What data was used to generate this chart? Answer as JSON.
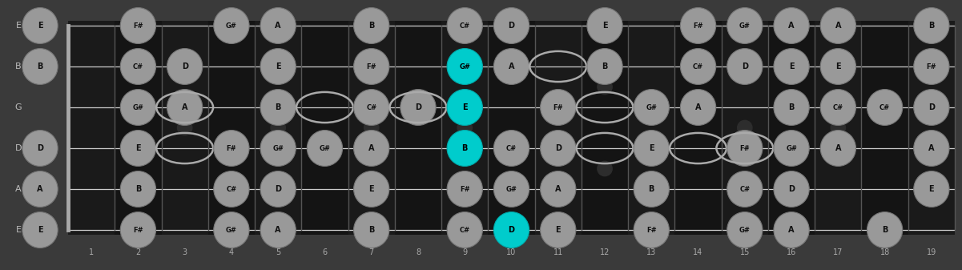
{
  "fig_width": 12.01,
  "fig_height": 3.37,
  "bg_color": "#3a3a3a",
  "fretboard_bg": "#1c1c1c",
  "fret_alt1": "#1e1e1e",
  "fret_alt2": "#161616",
  "string_color": "#cccccc",
  "fret_color": "#555555",
  "nut_color": "#888888",
  "note_fill": "#999999",
  "note_edge": "#777777",
  "note_text": "#111111",
  "highlight_fill": "#00cccc",
  "highlight_edge": "#00aaaa",
  "highlight_text": "#000000",
  "open_edge": "#aaaaaa",
  "label_color": "#bbbbbb",
  "fret_num_color": "#aaaaaa",
  "num_frets": 19,
  "num_strings": 6,
  "string_labels": [
    "E",
    "B",
    "G",
    "D",
    "A",
    "E"
  ],
  "position_dots": [
    3,
    5,
    7,
    9,
    12,
    15,
    17
  ],
  "double_dots": [
    12
  ],
  "notes_data": [
    [
      0,
      0,
      "E",
      false,
      false
    ],
    [
      0,
      1,
      "B",
      false,
      false
    ],
    [
      0,
      3,
      "D",
      false,
      false
    ],
    [
      0,
      4,
      "A",
      false,
      false
    ],
    [
      0,
      5,
      "E",
      false,
      false
    ],
    [
      2,
      0,
      "F#",
      false,
      false
    ],
    [
      2,
      1,
      "C#",
      false,
      false
    ],
    [
      2,
      2,
      "G#",
      false,
      false
    ],
    [
      2,
      3,
      "E",
      false,
      false
    ],
    [
      2,
      4,
      "B",
      false,
      false
    ],
    [
      2,
      5,
      "F#",
      false,
      false
    ],
    [
      3,
      1,
      "D",
      false,
      false
    ],
    [
      3,
      2,
      "A",
      false,
      false
    ],
    [
      3,
      2,
      "",
      false,
      true
    ],
    [
      3,
      3,
      "",
      false,
      true
    ],
    [
      4,
      0,
      "G#",
      false,
      false
    ],
    [
      4,
      3,
      "F#",
      false,
      false
    ],
    [
      4,
      4,
      "C#",
      false,
      false
    ],
    [
      4,
      5,
      "G#",
      false,
      false
    ],
    [
      5,
      0,
      "A",
      false,
      false
    ],
    [
      5,
      1,
      "E",
      false,
      false
    ],
    [
      5,
      2,
      "B",
      false,
      false
    ],
    [
      5,
      3,
      "G#",
      false,
      false
    ],
    [
      5,
      4,
      "D",
      false,
      false
    ],
    [
      5,
      5,
      "A",
      false,
      false
    ],
    [
      6,
      2,
      "",
      false,
      true
    ],
    [
      6,
      3,
      "G#",
      false,
      false
    ],
    [
      7,
      0,
      "B",
      false,
      false
    ],
    [
      7,
      1,
      "F#",
      false,
      false
    ],
    [
      7,
      2,
      "C#",
      false,
      false
    ],
    [
      7,
      3,
      "A",
      false,
      false
    ],
    [
      7,
      4,
      "E",
      false,
      false
    ],
    [
      7,
      5,
      "B",
      false,
      false
    ],
    [
      8,
      2,
      "D",
      false,
      false
    ],
    [
      8,
      2,
      "",
      false,
      true
    ],
    [
      9,
      0,
      "C#",
      false,
      false
    ],
    [
      9,
      1,
      "G#",
      true,
      false
    ],
    [
      9,
      2,
      "E",
      true,
      false
    ],
    [
      9,
      3,
      "B",
      true,
      false
    ],
    [
      9,
      4,
      "F#",
      false,
      false
    ],
    [
      9,
      5,
      "C#",
      false,
      false
    ],
    [
      10,
      0,
      "D",
      false,
      false
    ],
    [
      10,
      1,
      "A",
      false,
      false
    ],
    [
      10,
      3,
      "C#",
      false,
      false
    ],
    [
      10,
      4,
      "G#",
      false,
      false
    ],
    [
      10,
      5,
      "D",
      true,
      false
    ],
    [
      11,
      2,
      "F#",
      false,
      false
    ],
    [
      11,
      3,
      "D",
      false,
      false
    ],
    [
      11,
      4,
      "A",
      false,
      false
    ],
    [
      11,
      5,
      "E",
      false,
      false
    ],
    [
      11,
      1,
      "",
      false,
      true
    ],
    [
      12,
      0,
      "E",
      false,
      false
    ],
    [
      12,
      1,
      "B",
      false,
      false
    ],
    [
      12,
      2,
      "",
      false,
      true
    ],
    [
      12,
      3,
      "",
      false,
      true
    ],
    [
      13,
      2,
      "G#",
      false,
      false
    ],
    [
      13,
      3,
      "E",
      false,
      false
    ],
    [
      13,
      4,
      "B",
      false,
      false
    ],
    [
      13,
      5,
      "F#",
      false,
      false
    ],
    [
      14,
      0,
      "F#",
      false,
      false
    ],
    [
      14,
      1,
      "C#",
      false,
      false
    ],
    [
      14,
      2,
      "A",
      false,
      false
    ],
    [
      14,
      3,
      "",
      false,
      true
    ],
    [
      15,
      0,
      "G#",
      false,
      false
    ],
    [
      15,
      1,
      "D",
      false,
      false
    ],
    [
      15,
      3,
      "F#",
      false,
      false
    ],
    [
      15,
      4,
      "C#",
      false,
      false
    ],
    [
      15,
      5,
      "G#",
      false,
      false
    ],
    [
      15,
      3,
      "",
      false,
      true
    ],
    [
      16,
      0,
      "A",
      false,
      false
    ],
    [
      16,
      1,
      "E",
      false,
      false
    ],
    [
      16,
      2,
      "B",
      false,
      false
    ],
    [
      16,
      3,
      "G#",
      false,
      false
    ],
    [
      16,
      4,
      "D",
      false,
      false
    ],
    [
      16,
      5,
      "A",
      false,
      false
    ],
    [
      17,
      0,
      "A",
      false,
      false
    ],
    [
      17,
      1,
      "E",
      false,
      false
    ],
    [
      17,
      2,
      "C#",
      false,
      false
    ],
    [
      17,
      3,
      "A",
      false,
      false
    ],
    [
      18,
      2,
      "C#",
      false,
      false
    ],
    [
      18,
      5,
      "B",
      false,
      false
    ],
    [
      19,
      0,
      "B",
      false,
      false
    ],
    [
      19,
      1,
      "F#",
      false,
      false
    ],
    [
      19,
      2,
      "D",
      false,
      false
    ],
    [
      19,
      3,
      "A",
      false,
      false
    ],
    [
      19,
      4,
      "E",
      false,
      false
    ]
  ]
}
